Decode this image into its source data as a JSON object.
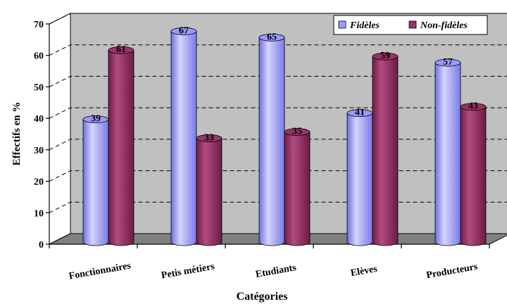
{
  "chart_data": {
    "type": "bar",
    "title": "",
    "xlabel": "Catégories",
    "ylabel": "Effectifs en %",
    "ylim": [
      0,
      70
    ],
    "yticks": [
      0,
      10,
      20,
      30,
      40,
      50,
      60,
      70
    ],
    "categories": [
      "Fonctionnaires",
      "Petis métiers",
      "Etudiants",
      "Elèves",
      "Producteurs"
    ],
    "series": [
      {
        "name": "Fidèles",
        "values": [
          39,
          67,
          65,
          41,
          57
        ],
        "color": "#9999ff"
      },
      {
        "name": "Non-fidèles",
        "values": [
          61,
          33,
          35,
          59,
          43
        ],
        "color": "#993366"
      }
    ],
    "grid": true,
    "legend_position": "top-right",
    "style": "3d-cylinder",
    "wall_color": "#c0c0c0",
    "floor_color": "#808080"
  }
}
